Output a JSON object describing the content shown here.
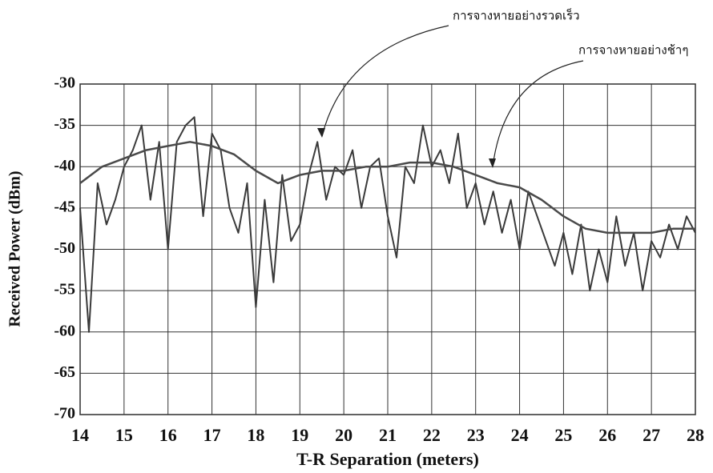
{
  "chart_data": {
    "type": "line",
    "xlabel": "T-R Separation (meters)",
    "ylabel": "Received Power (dBm)",
    "xlim": [
      14,
      28
    ],
    "xticks": [
      14,
      15,
      16,
      17,
      18,
      19,
      20,
      21,
      22,
      23,
      24,
      25,
      26,
      27,
      28
    ],
    "ylim": [
      -70,
      -30
    ],
    "yticks": [
      -30,
      -35,
      -40,
      -45,
      -50,
      -55,
      -60,
      -65,
      -70
    ],
    "grid": true,
    "annotations": [
      {
        "text": "การจางหายอย่างรวดเร็ว"
      },
      {
        "text": "การจางหายอย่างช้าๆ"
      }
    ],
    "series": [
      {
        "color": "#3a3a3a",
        "x": [
          14.0,
          14.2,
          14.4,
          14.6,
          14.8,
          15.0,
          15.2,
          15.4,
          15.6,
          15.8,
          16.0,
          16.2,
          16.4,
          16.6,
          16.8,
          17.0,
          17.2,
          17.4,
          17.6,
          17.8,
          18.0,
          18.2,
          18.4,
          18.6,
          18.8,
          19.0,
          19.2,
          19.4,
          19.6,
          19.8,
          20.0,
          20.2,
          20.4,
          20.6,
          20.8,
          21.0,
          21.2,
          21.4,
          21.6,
          21.8,
          22.0,
          22.2,
          22.4,
          22.6,
          22.8,
          23.0,
          23.2,
          23.4,
          23.6,
          23.8,
          24.0,
          24.2,
          24.4,
          24.6,
          24.8,
          25.0,
          25.2,
          25.4,
          25.6,
          25.8,
          26.0,
          26.2,
          26.4,
          26.6,
          26.8,
          27.0,
          27.2,
          27.4,
          27.6,
          27.8,
          28.0
        ],
        "values": [
          -45,
          -60,
          -42,
          -47,
          -44,
          -40,
          -38,
          -35,
          -44,
          -37,
          -50,
          -37,
          -35,
          -34,
          -46,
          -36,
          -38,
          -45,
          -48,
          -42,
          -57,
          -44,
          -54,
          -41,
          -49,
          -47,
          -41,
          -37,
          -44,
          -40,
          -41,
          -38,
          -45,
          -40,
          -39,
          -46,
          -51,
          -40,
          -42,
          -35,
          -40,
          -38,
          -42,
          -36,
          -45,
          -42,
          -47,
          -43,
          -48,
          -44,
          -50,
          -43,
          -46,
          -49,
          -52,
          -48,
          -53,
          -47,
          -55,
          -50,
          -54,
          -46,
          -52,
          -48,
          -55,
          -49,
          -51,
          -47,
          -50,
          -46,
          -48
        ]
      },
      {
        "color": "#4a4a4a",
        "x": [
          14.0,
          14.5,
          15.0,
          15.5,
          16.0,
          16.5,
          17.0,
          17.5,
          18.0,
          18.5,
          19.0,
          19.5,
          20.0,
          20.5,
          21.0,
          21.5,
          22.0,
          22.5,
          23.0,
          23.5,
          24.0,
          24.5,
          25.0,
          25.5,
          26.0,
          26.5,
          27.0,
          27.5,
          28.0
        ],
        "values": [
          -42,
          -40,
          -39,
          -38,
          -37.5,
          -37,
          -37.5,
          -38.5,
          -40.5,
          -42,
          -41,
          -40.5,
          -40.5,
          -40,
          -40,
          -39.5,
          -39.5,
          -40,
          -41,
          -42,
          -42.5,
          -44,
          -46,
          -47.5,
          -48,
          -48,
          -48,
          -47.5,
          -47.5
        ]
      }
    ]
  }
}
